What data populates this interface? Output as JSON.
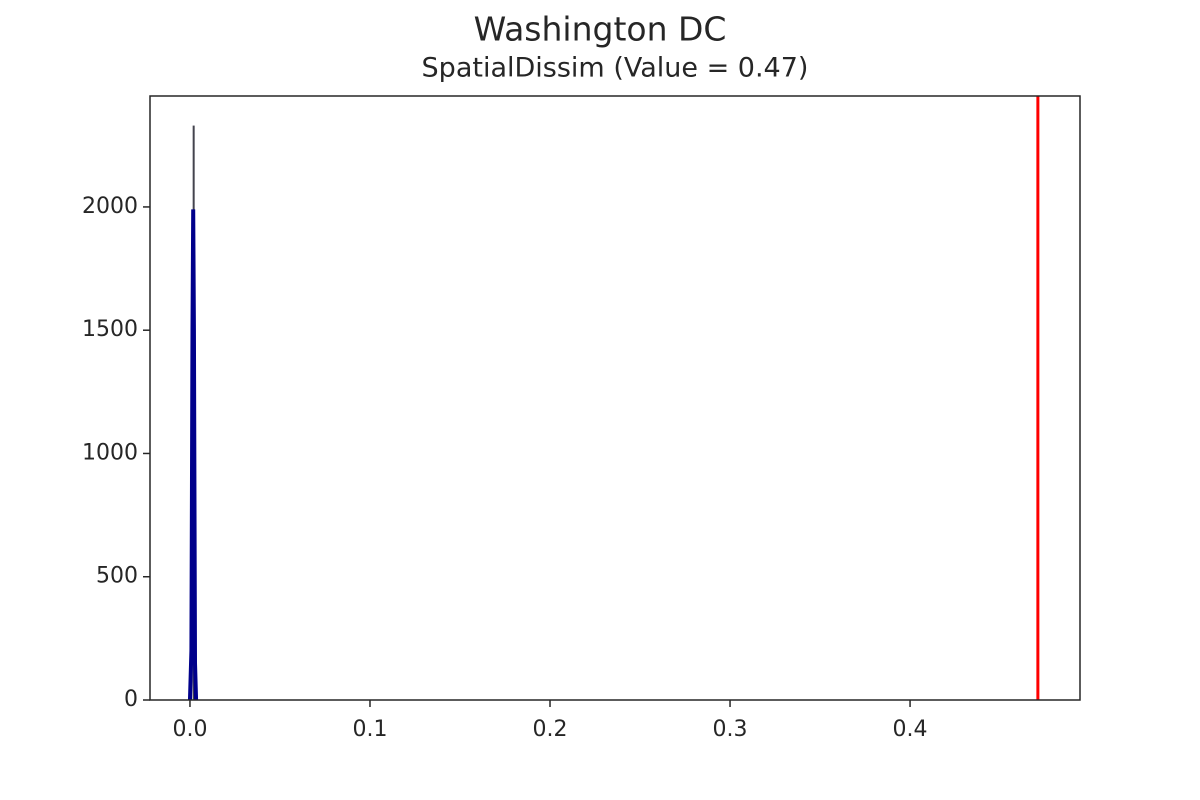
{
  "chart_data": {
    "type": "histogram",
    "title": "Washington DC",
    "subtitle": "SpatialDissim (Value = 0.47)",
    "bins": [
      0.0015,
      0.0019
    ],
    "counts": [
      2330
    ],
    "hist_color": "#44444e",
    "kde": {
      "x": [
        0.0,
        0.0008,
        0.0014,
        0.0018,
        0.0022,
        0.0028,
        0.0034
      ],
      "y": [
        0,
        200,
        1500,
        1990,
        1500,
        150,
        0
      ],
      "color": "#00008b"
    },
    "vline": {
      "x": 0.471,
      "color": "#ff0000"
    },
    "xlim": [
      -0.0222,
      0.4944
    ],
    "ylim": [
      0,
      2450
    ],
    "xticks": [
      {
        "value": 0,
        "label": "0.0"
      },
      0.1,
      0.2,
      0.3,
      0.4
    ],
    "yticks": [
      0,
      500,
      1000,
      1500,
      2000
    ],
    "grid": false
  }
}
